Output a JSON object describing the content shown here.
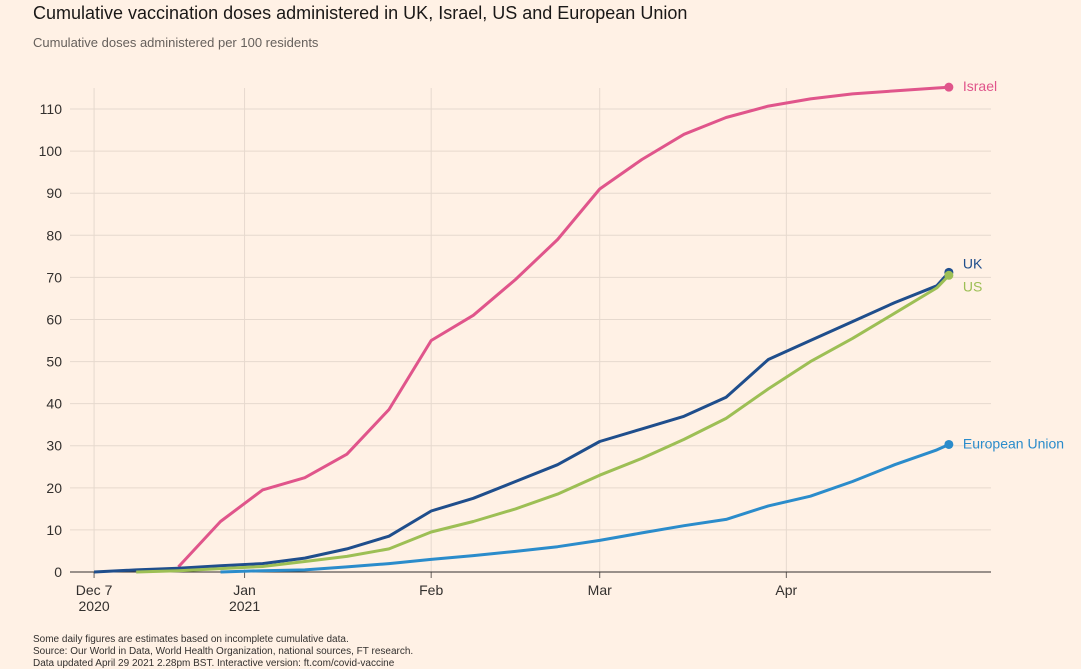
{
  "chart_data": {
    "type": "line",
    "title": "Cumulative vaccination doses administered in UK, Israel, US and European Union",
    "subtitle": "Cumulative doses administered per 100 residents",
    "notes": [
      "Some daily figures are estimates based on incomplete cumulative data.",
      "Source: Our World in Data, World Health Organization, national sources, FT research.",
      "Data updated April 29 2021 2.28pm BST. Interactive version: ft.com/covid-vaccine"
    ],
    "x": [
      "2020-12-07",
      "2020-12-14",
      "2020-12-21",
      "2020-12-28",
      "2021-01-04",
      "2021-01-11",
      "2021-01-18",
      "2021-01-25",
      "2021-02-01",
      "2021-02-08",
      "2021-02-15",
      "2021-02-22",
      "2021-03-01",
      "2021-03-08",
      "2021-03-15",
      "2021-03-22",
      "2021-03-29",
      "2021-04-05",
      "2021-04-12",
      "2021-04-19",
      "2021-04-26",
      "2021-04-28"
    ],
    "series": [
      {
        "name": "Israel",
        "color": "#e0558b",
        "values": [
          null,
          null,
          1.2,
          12,
          19.5,
          22.4,
          28,
          38.6,
          55,
          61,
          69.5,
          79,
          91,
          98,
          104,
          108,
          110.7,
          112.4,
          113.6,
          114.3,
          115,
          115.2
        ]
      },
      {
        "name": "UK",
        "color": "#1f4e8c",
        "values": [
          0,
          0.5,
          0.9,
          1.5,
          2,
          3.3,
          5.5,
          8.5,
          14.5,
          17.5,
          21.5,
          25.5,
          31,
          34,
          37,
          41.5,
          50.5,
          55,
          59.5,
          64,
          68,
          71.2
        ]
      },
      {
        "name": "US",
        "color": "#9dbf55",
        "values": [
          null,
          0,
          0.3,
          0.8,
          1.3,
          2.5,
          3.7,
          5.5,
          9.5,
          12,
          15,
          18.5,
          23,
          27,
          31.5,
          36.5,
          43.5,
          50,
          55.5,
          61.5,
          67.5,
          70.5
        ]
      },
      {
        "name": "European Union",
        "color": "#2b8ccb",
        "values": [
          null,
          null,
          null,
          0,
          0.3,
          0.5,
          1.2,
          2,
          3,
          3.9,
          4.9,
          6,
          7.5,
          9.3,
          11,
          12.5,
          15.7,
          18,
          21.5,
          25.5,
          29,
          30.3
        ]
      }
    ],
    "xlim": [
      "2020-12-03",
      "2021-05-05"
    ],
    "xticks": [
      {
        "value": "2020-12-07",
        "label": [
          "Dec 7",
          "2020"
        ]
      },
      {
        "value": "2021-01-01",
        "label": [
          "Jan",
          "2021"
        ]
      },
      {
        "value": "2021-02-01",
        "label": [
          "Feb"
        ]
      },
      {
        "value": "2021-03-01",
        "label": [
          "Mar"
        ]
      },
      {
        "value": "2021-04-01",
        "label": [
          "Apr"
        ]
      }
    ],
    "ylim": [
      0,
      115
    ],
    "yticks": [
      0,
      10,
      20,
      30,
      40,
      50,
      60,
      70,
      80,
      90,
      100,
      110
    ],
    "grid": true
  }
}
